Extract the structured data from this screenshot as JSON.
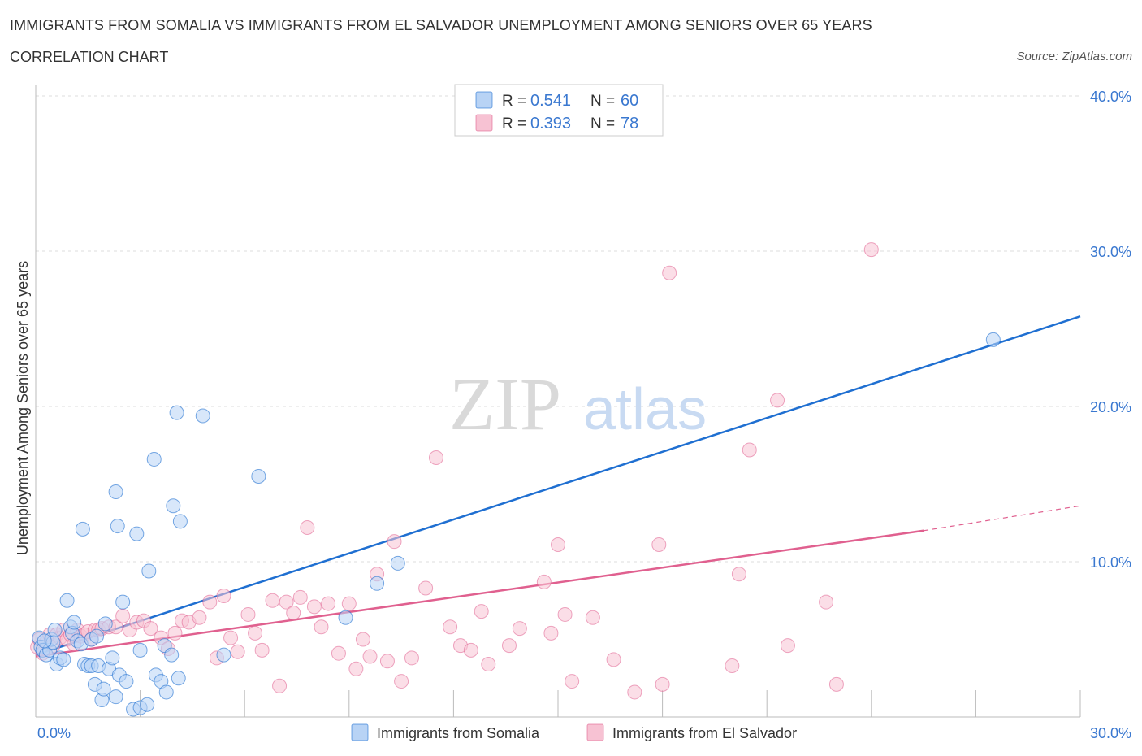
{
  "header": {
    "title": "IMMIGRANTS FROM SOMALIA VS IMMIGRANTS FROM EL SALVADOR UNEMPLOYMENT AMONG SENIORS OVER 65 YEARS",
    "subtitle": "CORRELATION CHART",
    "source": "Source: ZipAtlas.com"
  },
  "watermark": {
    "zip": "ZIP",
    "atlas": "atlas"
  },
  "colors": {
    "somalia": "#1f6fd1",
    "somalia_fill": "#b8d3f5",
    "elsalvador": "#e0608f",
    "elsalvador_fill": "#f7c2d3",
    "axis_text": "#3a78d0",
    "grid": "#dddddd"
  },
  "legend": {
    "items": [
      {
        "r_label": "R =",
        "r_value": "0.541",
        "n_label": "N =",
        "n_value": "60"
      },
      {
        "r_label": "R =",
        "r_value": "0.393",
        "n_label": "N =",
        "n_value": "78"
      }
    ]
  },
  "bottom_legend": [
    "Immigrants from Somalia",
    "Immigrants from El Salvador"
  ],
  "chart_data": {
    "type": "scatter",
    "title": "IMMIGRANTS FROM SOMALIA VS IMMIGRANTS FROM EL SALVADOR UNEMPLOYMENT AMONG SENIORS OVER 65 YEARS",
    "xlabel": "",
    "ylabel": "Unemployment Among Seniors over 65 years",
    "xlim": [
      0,
      30
    ],
    "ylim": [
      0,
      40
    ],
    "x_tick_labels": [
      {
        "value": 0,
        "label": "0.0%"
      },
      {
        "value": 30,
        "label": "30.0%"
      }
    ],
    "x_minor_ticks": [
      3,
      6,
      9,
      12,
      15,
      18,
      21,
      24,
      27,
      30
    ],
    "y_ticks": [
      {
        "value": 10,
        "label": "10.0%"
      },
      {
        "value": 20,
        "label": "20.0%"
      },
      {
        "value": 30,
        "label": "30.0%"
      },
      {
        "value": 40,
        "label": "40.0%"
      }
    ],
    "grid": true,
    "series": [
      {
        "name": "Immigrants from Somalia",
        "R": 0.541,
        "N": 60,
        "trend": {
          "x0": 0,
          "y0": 4.0,
          "x1": 30,
          "y1": 25.8
        },
        "points": [
          [
            0.1,
            5.1
          ],
          [
            0.15,
            4.5
          ],
          [
            0.2,
            4.3
          ],
          [
            0.3,
            4.0
          ],
          [
            0.4,
            4.3
          ],
          [
            0.45,
            5.0
          ],
          [
            0.5,
            4.8
          ],
          [
            0.55,
            5.6
          ],
          [
            0.6,
            3.4
          ],
          [
            0.7,
            3.8
          ],
          [
            0.8,
            3.7
          ],
          [
            0.9,
            7.5
          ],
          [
            1.0,
            5.8
          ],
          [
            1.05,
            5.4
          ],
          [
            1.1,
            6.1
          ],
          [
            1.2,
            4.9
          ],
          [
            1.3,
            4.7
          ],
          [
            1.35,
            12.1
          ],
          [
            1.4,
            3.4
          ],
          [
            1.5,
            3.3
          ],
          [
            1.6,
            3.3
          ],
          [
            1.6,
            5.0
          ],
          [
            1.7,
            2.1
          ],
          [
            1.75,
            5.2
          ],
          [
            1.8,
            3.3
          ],
          [
            1.9,
            1.1
          ],
          [
            1.95,
            1.8
          ],
          [
            2.0,
            6.0
          ],
          [
            2.1,
            3.1
          ],
          [
            2.2,
            3.8
          ],
          [
            2.3,
            1.3
          ],
          [
            2.3,
            14.5
          ],
          [
            2.35,
            12.3
          ],
          [
            2.4,
            2.7
          ],
          [
            2.5,
            7.4
          ],
          [
            2.6,
            2.3
          ],
          [
            2.8,
            0.5
          ],
          [
            2.9,
            11.8
          ],
          [
            3.0,
            0.6
          ],
          [
            3.0,
            4.3
          ],
          [
            3.2,
            0.8
          ],
          [
            3.25,
            9.4
          ],
          [
            3.4,
            16.6
          ],
          [
            3.45,
            2.7
          ],
          [
            3.6,
            2.3
          ],
          [
            3.7,
            4.6
          ],
          [
            3.75,
            1.6
          ],
          [
            3.9,
            4.0
          ],
          [
            3.95,
            13.6
          ],
          [
            4.05,
            19.6
          ],
          [
            4.1,
            2.5
          ],
          [
            4.15,
            12.6
          ],
          [
            4.8,
            19.4
          ],
          [
            5.4,
            4.0
          ],
          [
            6.4,
            15.5
          ],
          [
            8.9,
            6.4
          ],
          [
            9.8,
            8.6
          ],
          [
            10.4,
            9.9
          ],
          [
            27.5,
            24.3
          ],
          [
            0.25,
            4.9
          ]
        ]
      },
      {
        "name": "Immigrants from El Salvador",
        "R": 0.393,
        "N": 78,
        "trend": {
          "x0": 0,
          "y0": 3.9,
          "x1": 25.5,
          "y1": 12.0
        },
        "trend_dashed": {
          "x0": 25.5,
          "y0": 12.0,
          "x1": 30,
          "y1": 13.6
        },
        "points": [
          [
            0.05,
            4.5
          ],
          [
            0.1,
            5.0
          ],
          [
            0.2,
            4.1
          ],
          [
            0.3,
            4.8
          ],
          [
            0.4,
            5.3
          ],
          [
            0.5,
            4.6
          ],
          [
            0.6,
            5.3
          ],
          [
            0.7,
            5.1
          ],
          [
            0.8,
            5.6
          ],
          [
            0.9,
            5.0
          ],
          [
            1.0,
            5.3
          ],
          [
            1.1,
            4.7
          ],
          [
            1.2,
            5.6
          ],
          [
            1.3,
            5.2
          ],
          [
            1.4,
            5.3
          ],
          [
            1.5,
            5.5
          ],
          [
            1.6,
            5.0
          ],
          [
            1.7,
            5.6
          ],
          [
            1.8,
            5.6
          ],
          [
            1.9,
            5.7
          ],
          [
            2.1,
            5.8
          ],
          [
            2.3,
            5.8
          ],
          [
            2.5,
            6.5
          ],
          [
            2.7,
            5.6
          ],
          [
            2.9,
            6.1
          ],
          [
            3.1,
            6.2
          ],
          [
            3.3,
            5.7
          ],
          [
            3.6,
            5.1
          ],
          [
            3.8,
            4.4
          ],
          [
            4.0,
            5.4
          ],
          [
            4.2,
            6.2
          ],
          [
            4.4,
            6.1
          ],
          [
            4.7,
            6.4
          ],
          [
            5.0,
            7.4
          ],
          [
            5.2,
            3.8
          ],
          [
            5.4,
            7.8
          ],
          [
            5.6,
            5.1
          ],
          [
            5.8,
            4.2
          ],
          [
            6.1,
            6.6
          ],
          [
            6.3,
            5.4
          ],
          [
            6.5,
            4.3
          ],
          [
            6.8,
            7.5
          ],
          [
            7.0,
            2.0
          ],
          [
            7.2,
            7.4
          ],
          [
            7.4,
            6.7
          ],
          [
            7.6,
            7.7
          ],
          [
            7.8,
            12.2
          ],
          [
            8.0,
            7.1
          ],
          [
            8.2,
            5.8
          ],
          [
            8.4,
            7.3
          ],
          [
            8.7,
            4.1
          ],
          [
            9.0,
            7.3
          ],
          [
            9.2,
            3.1
          ],
          [
            9.4,
            5.0
          ],
          [
            9.6,
            3.9
          ],
          [
            9.8,
            9.2
          ],
          [
            10.1,
            3.6
          ],
          [
            10.3,
            11.3
          ],
          [
            10.5,
            2.3
          ],
          [
            10.8,
            3.8
          ],
          [
            11.2,
            8.3
          ],
          [
            11.5,
            16.7
          ],
          [
            11.9,
            5.8
          ],
          [
            12.2,
            4.6
          ],
          [
            12.5,
            4.3
          ],
          [
            12.8,
            6.8
          ],
          [
            13.0,
            3.4
          ],
          [
            13.6,
            4.6
          ],
          [
            13.9,
            5.7
          ],
          [
            14.6,
            8.7
          ],
          [
            14.8,
            5.4
          ],
          [
            15.2,
            6.6
          ],
          [
            15.4,
            2.3
          ],
          [
            16.0,
            6.4
          ],
          [
            16.6,
            3.7
          ],
          [
            17.2,
            1.6
          ],
          [
            17.9,
            11.1
          ],
          [
            20.2,
            9.2
          ]
        ],
        "extra_points": [
          [
            18.0,
            2.1
          ],
          [
            20.0,
            3.3
          ],
          [
            20.5,
            17.2
          ],
          [
            21.3,
            20.4
          ],
          [
            21.6,
            4.6
          ],
          [
            22.7,
            7.4
          ],
          [
            23.0,
            2.1
          ],
          [
            18.2,
            28.6
          ],
          [
            24.0,
            30.1
          ],
          [
            15.0,
            11.1
          ]
        ]
      }
    ]
  }
}
